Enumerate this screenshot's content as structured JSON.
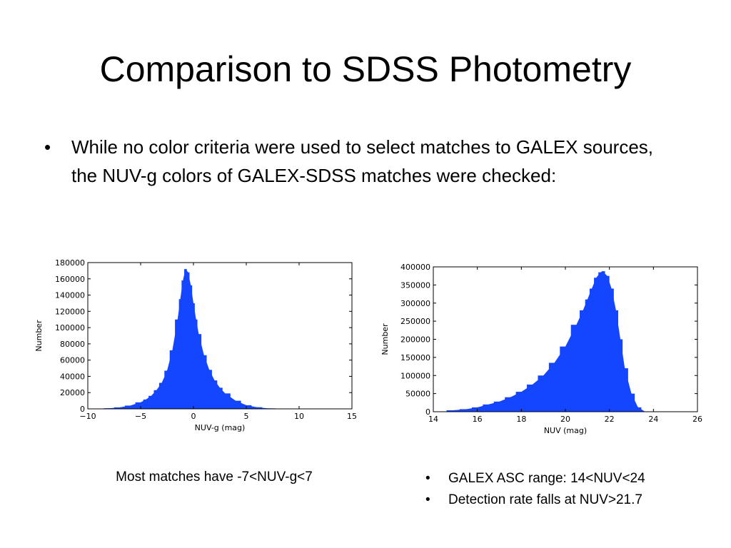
{
  "slide": {
    "title": "Comparison to SDSS Photometry",
    "bullets": [
      "While no color criteria were used to select matches to GALEX sources, the NUV-g colors of GALEX-SDSS matches were checked:"
    ],
    "caption_left": "Most matches have -7<NUV-g<7",
    "caption_right": [
      "GALEX ASC range: 14<NUV<24",
      "Detection rate falls at NUV>21.7"
    ]
  },
  "colors": {
    "bar": "#1446ff",
    "axis": "#000000",
    "text": "#000000"
  },
  "chart_data": [
    {
      "type": "bar",
      "title": "",
      "xlabel": "NUV-g (mag)",
      "ylabel": "Number",
      "xlim": [
        -10,
        15
      ],
      "ylim": [
        0,
        180000
      ],
      "xticks": [
        -10,
        -5,
        0,
        5,
        10,
        15
      ],
      "xtick_labels": [
        "−10",
        "−5",
        "0",
        "5",
        "10",
        "15"
      ],
      "yticks": [
        0,
        20000,
        40000,
        60000,
        80000,
        100000,
        120000,
        140000,
        160000,
        180000
      ],
      "ytick_labels": [
        "0",
        "20000",
        "40000",
        "60000",
        "80000",
        "100000",
        "120000",
        "140000",
        "160000",
        "180000"
      ],
      "grid": false,
      "x": [
        -9,
        -8,
        -7,
        -6,
        -5,
        -4.5,
        -4,
        -3.5,
        -3,
        -2.5,
        -2,
        -1.5,
        -1.25,
        -1,
        -0.75,
        -0.5,
        -0.25,
        0,
        0.25,
        0.5,
        1,
        1.5,
        2,
        2.5,
        3,
        4,
        5,
        6,
        7,
        8.5
      ],
      "values": [
        200,
        700,
        1800,
        4000,
        8000,
        11500,
        16000,
        23000,
        32000,
        47000,
        72000,
        110000,
        135000,
        158000,
        172000,
        168000,
        152000,
        130000,
        110000,
        92000,
        66000,
        48000,
        35000,
        26000,
        19000,
        10000,
        4500,
        2000,
        600,
        100
      ]
    },
    {
      "type": "bar",
      "title": "",
      "xlabel": "NUV (mag)",
      "ylabel": "Number",
      "xlim": [
        14,
        26
      ],
      "ylim": [
        0,
        400000
      ],
      "xticks": [
        14,
        16,
        18,
        20,
        22,
        24,
        26
      ],
      "xtick_labels": [
        "14",
        "16",
        "18",
        "20",
        "22",
        "24",
        "26"
      ],
      "yticks": [
        0,
        50000,
        100000,
        150000,
        200000,
        250000,
        300000,
        350000,
        400000
      ],
      "ytick_labels": [
        "0",
        "50000",
        "100000",
        "150000",
        "200000",
        "250000",
        "300000",
        "350000",
        "400000"
      ],
      "grid": false,
      "x": [
        14.9,
        15.5,
        16,
        16.5,
        17,
        17.5,
        18,
        18.5,
        19,
        19.5,
        20,
        20.5,
        20.8,
        21,
        21.2,
        21.4,
        21.6,
        21.7,
        21.9,
        22.1,
        22.3,
        22.5,
        22.7,
        23,
        23.3,
        23.6
      ],
      "values": [
        4000,
        7000,
        12000,
        20000,
        28000,
        40000,
        55000,
        75000,
        100000,
        135000,
        180000,
        240000,
        280000,
        310000,
        340000,
        370000,
        385000,
        388000,
        375000,
        340000,
        280000,
        200000,
        120000,
        50000,
        12000,
        1000
      ]
    }
  ]
}
